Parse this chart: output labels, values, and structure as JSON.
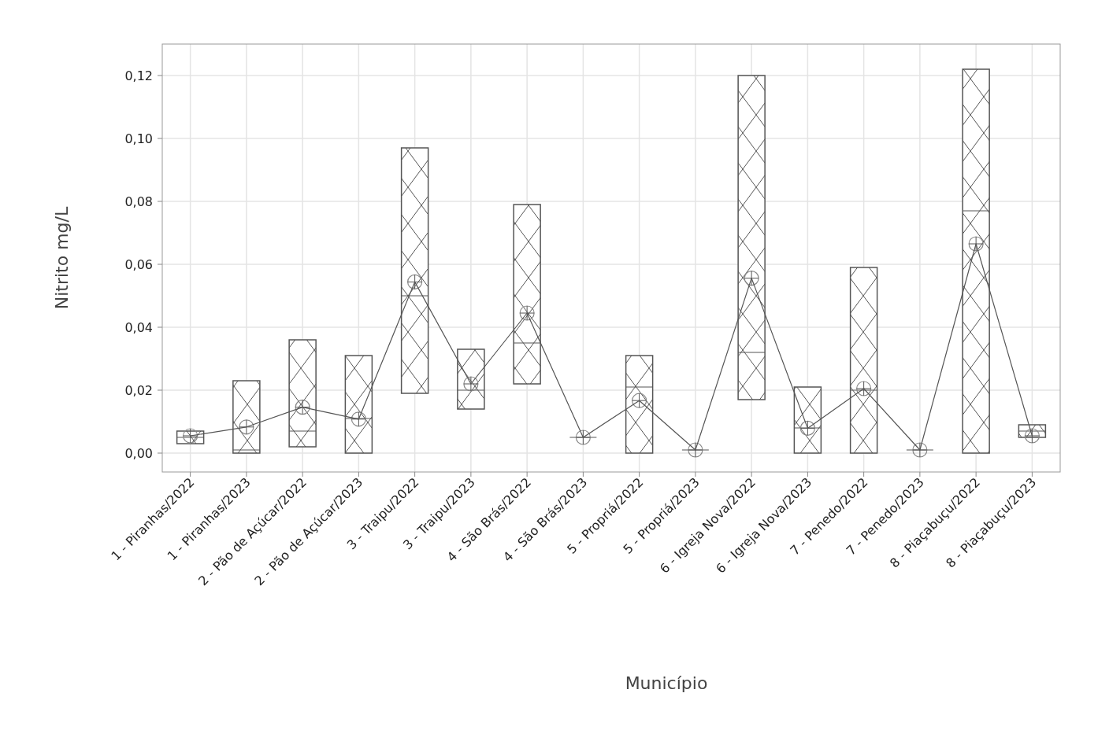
{
  "chart_data": {
    "type": "box",
    "xlabel": "Município",
    "ylabel": "Nitrito mg/L",
    "categories": [
      "1 - Piranhas/2022",
      "1 - Piranhas/2023",
      "2 - Pão de Açúcar/2022",
      "2 - Pão de Açúcar/2023",
      "3 - Traipu/2022",
      "3 - Traipu/2023",
      "4 - São Brás/2022",
      "4 - São Brás/2023",
      "5 - Propriá/2022",
      "5 - Propriá/2023",
      "6 - Igreja Nova/2022",
      "6 - Igreja Nova/2023",
      "7 - Penedo/2022",
      "7 - Penedo/2023",
      "8 - Piaçabuçu/2022",
      "8 - Piaçabuçu/2023"
    ],
    "boxes": [
      {
        "low": 0.003,
        "q1": 0.003,
        "median": 0.005,
        "q3": 0.007,
        "high": 0.007,
        "mean": 0.0055
      },
      {
        "low": 0.0,
        "q1": 0.0,
        "median": 0.001,
        "q3": 0.023,
        "high": 0.023,
        "mean": 0.0083
      },
      {
        "low": 0.002,
        "q1": 0.002,
        "median": 0.007,
        "q3": 0.036,
        "high": 0.036,
        "mean": 0.0146
      },
      {
        "low": 0.0,
        "q1": 0.0,
        "median": 0.011,
        "q3": 0.031,
        "high": 0.031,
        "mean": 0.0108
      },
      {
        "low": 0.019,
        "q1": 0.019,
        "median": 0.05,
        "q3": 0.097,
        "high": 0.097,
        "mean": 0.0544
      },
      {
        "low": 0.014,
        "q1": 0.014,
        "median": 0.02,
        "q3": 0.033,
        "high": 0.033,
        "mean": 0.022
      },
      {
        "low": 0.022,
        "q1": 0.022,
        "median": 0.035,
        "q3": 0.079,
        "high": 0.079,
        "mean": 0.0445
      },
      {
        "low": 0.005,
        "q1": 0.005,
        "median": 0.005,
        "q3": 0.005,
        "high": 0.005,
        "mean": 0.005
      },
      {
        "low": 0.0,
        "q1": 0.0,
        "median": 0.021,
        "q3": 0.031,
        "high": 0.031,
        "mean": 0.0167
      },
      {
        "low": 0.001,
        "q1": 0.001,
        "median": 0.001,
        "q3": 0.001,
        "high": 0.001,
        "mean": 0.001
      },
      {
        "low": 0.017,
        "q1": 0.017,
        "median": 0.032,
        "q3": 0.12,
        "high": 0.12,
        "mean": 0.0556
      },
      {
        "low": 0.0,
        "q1": 0.0,
        "median": 0.008,
        "q3": 0.021,
        "high": 0.021,
        "mean": 0.0079
      },
      {
        "low": 0.0,
        "q1": 0.0,
        "median": 0.02,
        "q3": 0.059,
        "high": 0.059,
        "mean": 0.0205
      },
      {
        "low": 0.001,
        "q1": 0.001,
        "median": 0.001,
        "q3": 0.001,
        "high": 0.001,
        "mean": 0.001
      },
      {
        "low": 0.0,
        "q1": 0.0,
        "median": 0.077,
        "q3": 0.122,
        "high": 0.122,
        "mean": 0.0665
      },
      {
        "low": 0.005,
        "q1": 0.005,
        "median": 0.007,
        "q3": 0.009,
        "high": 0.009,
        "mean": 0.0055
      }
    ],
    "series": [
      {
        "type": "line",
        "color": "#555555",
        "values": [
          0.0055,
          0.0083,
          0.0146,
          0.0108,
          0.0544,
          0.022,
          0.0445,
          0.005,
          0.0167,
          0.001,
          0.0556,
          0.0079,
          0.0205,
          0.001,
          0.0665,
          0.0055
        ]
      }
    ],
    "ylim": [
      -0.006,
      0.13
    ],
    "yticks": [
      {
        "value": 0,
        "label": "0,00"
      },
      {
        "value": 0.02,
        "label": "0,02"
      },
      {
        "value": 0.04,
        "label": "0,04"
      },
      {
        "value": 0.06,
        "label": "0,06"
      },
      {
        "value": 0.08,
        "label": "0,08"
      },
      {
        "value": 0.1,
        "label": "0,10"
      },
      {
        "value": 0.12,
        "label": "0,12"
      }
    ],
    "grid": true
  }
}
